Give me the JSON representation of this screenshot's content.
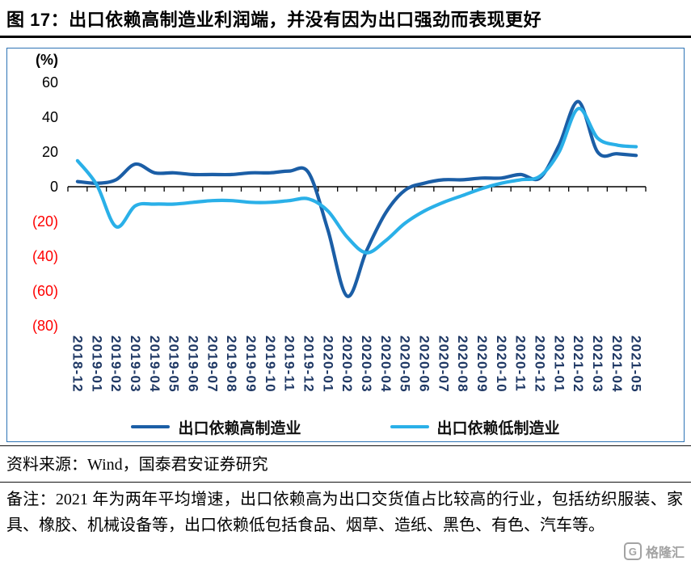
{
  "header": {
    "title": "图 17：出口依赖高制造业利润端，并没有因为出口强劲而表现更好"
  },
  "chart_data": {
    "type": "line",
    "unit_label": "(%)",
    "categories": [
      "2018-12",
      "2019-01",
      "2019-02",
      "2019-03",
      "2019-04",
      "2019-05",
      "2019-06",
      "2019-07",
      "2019-08",
      "2019-09",
      "2019-10",
      "2019-11",
      "2019-12",
      "2020-01",
      "2020-02",
      "2020-03",
      "2020-04",
      "2020-05",
      "2020-06",
      "2020-07",
      "2020-08",
      "2020-09",
      "2020-10",
      "2020-11",
      "2020-12",
      "2021-01",
      "2021-02",
      "2021-03",
      "2021-04",
      "2021-05"
    ],
    "series": [
      {
        "name": "出口依赖高制造业",
        "color": "#1b5ea6",
        "values": [
          3,
          2,
          4,
          13,
          8,
          8,
          7,
          7,
          7,
          8,
          8,
          9,
          8,
          -25,
          -63,
          -37,
          -15,
          -2,
          2,
          4,
          4,
          5,
          5,
          7,
          5,
          24,
          49,
          20,
          19,
          18
        ]
      },
      {
        "name": "出口依赖低制造业",
        "color": "#2ab0e8",
        "values": [
          15,
          1,
          -23,
          -11,
          -10,
          -10,
          -9,
          -8,
          -8,
          -9,
          -9,
          -8,
          -7,
          -14,
          -29,
          -38,
          -31,
          -21,
          -14,
          -9,
          -5,
          -1,
          2,
          4,
          6,
          20,
          45,
          28,
          24,
          23
        ]
      }
    ],
    "ylim": [
      -80,
      60
    ],
    "yticks": [
      60,
      40,
      20,
      0,
      -20,
      -40,
      -60,
      -80
    ],
    "negative_tick_color": "#fe0000",
    "axis_color": "#000000",
    "xlabel_color": "#1f3864",
    "legend_position": "bottom",
    "grid": false
  },
  "footer": {
    "source": "资料来源：Wind，国泰君安证券研究",
    "note": "备注：2021 年为两年平均增速，出口依赖高为出口交货值占比较高的行业，包括纺织服装、家具、橡胶、机械设备等，出口依赖低包括食品、烟草、造纸、黑色、有色、汽车等。"
  },
  "logo": {
    "badge": "G",
    "text": "格隆汇"
  }
}
